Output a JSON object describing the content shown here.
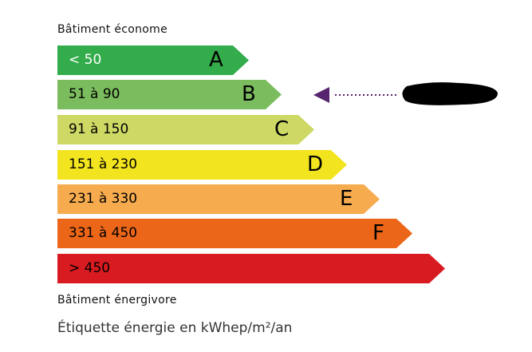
{
  "top_label": "Bâtiment économe",
  "bottom_label": "Bâtiment énergivore",
  "caption": "Étiquette énergie en kWhep/m²/an",
  "classes": [
    {
      "range": "< 50",
      "letter": "A",
      "color": "#33ac4b",
      "text_color": "#ffffff"
    },
    {
      "range": "51 à 90",
      "letter": "B",
      "color": "#7bbd5e",
      "text_color": "#000000"
    },
    {
      "range": "91 à 150",
      "letter": "C",
      "color": "#cdd964",
      "text_color": "#000000"
    },
    {
      "range": "151 à 230",
      "letter": "D",
      "color": "#f2e41e",
      "text_color": "#000000"
    },
    {
      "range": "231 à 330",
      "letter": "E",
      "color": "#f5ab4e",
      "text_color": "#000000"
    },
    {
      "range": "331 à 450",
      "letter": "F",
      "color": "#eb6618",
      "text_color": "#000000"
    },
    {
      "range": "> 450",
      "letter": "",
      "color": "#d81b21",
      "text_color": "#000000"
    }
  ],
  "indicator": {
    "class": "B",
    "color": "#57246f",
    "value_redacted": true
  }
}
